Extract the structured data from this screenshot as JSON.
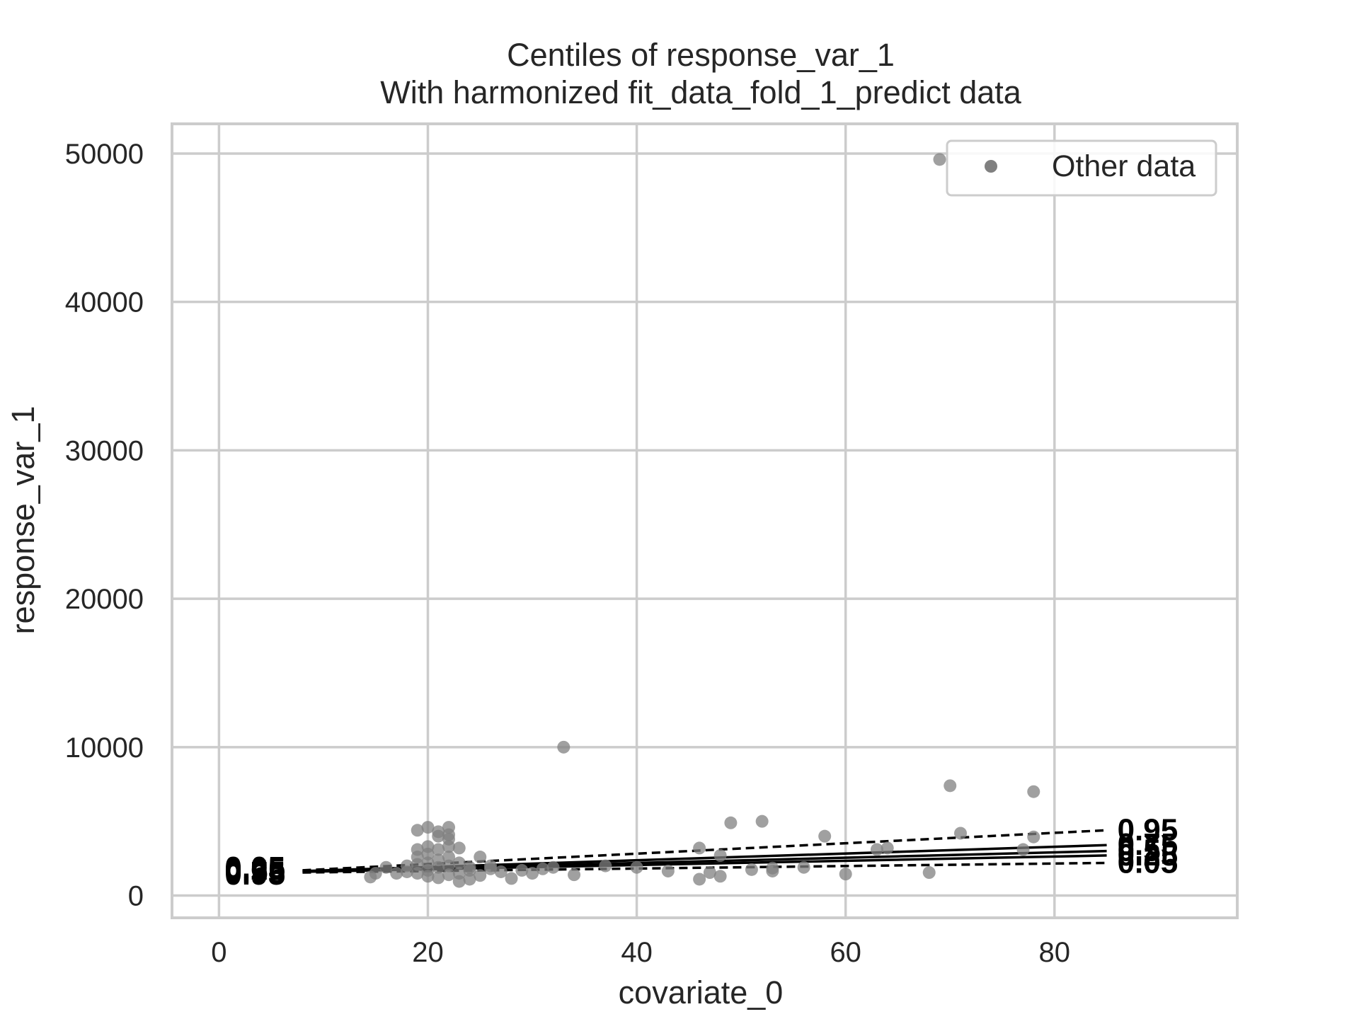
{
  "chart_data": {
    "type": "scatter",
    "title": "Centiles of response_var_1",
    "subtitle": "With harmonized fit_data_fold_1_predict data",
    "xlabel": "covariate_0",
    "ylabel": "response_var_1",
    "xlim": [
      -4.5,
      97.5
    ],
    "ylim": [
      -1500,
      52000
    ],
    "xticks": [
      0,
      20,
      40,
      60,
      80
    ],
    "yticks": [
      0,
      10000,
      20000,
      30000,
      40000,
      50000
    ],
    "xtick_labels": [
      "0",
      "20",
      "40",
      "60",
      "80"
    ],
    "ytick_labels": [
      "0",
      "10000",
      "20000",
      "30000",
      "40000",
      "50000"
    ],
    "grid": true,
    "legend": {
      "position": "top-right",
      "entries": [
        {
          "label": "Other data",
          "color": "#808080",
          "marker": "circle"
        }
      ]
    },
    "scatter_series": {
      "name": "Other data",
      "color": "#808080",
      "opacity": 0.75,
      "points": [
        [
          69,
          49600
        ],
        [
          33,
          10000
        ],
        [
          70,
          7400
        ],
        [
          78,
          7000
        ],
        [
          49,
          4900
        ],
        [
          52,
          5000
        ],
        [
          58,
          4000
        ],
        [
          71,
          4200
        ],
        [
          78,
          3950
        ],
        [
          46,
          3200
        ],
        [
          48,
          2700
        ],
        [
          63,
          3100
        ],
        [
          64,
          3200
        ],
        [
          77,
          3100
        ],
        [
          68,
          1550
        ],
        [
          60,
          1450
        ],
        [
          56,
          1900
        ],
        [
          53,
          1650
        ],
        [
          53,
          1850
        ],
        [
          51,
          1750
        ],
        [
          47,
          1550
        ],
        [
          48,
          1300
        ],
        [
          46,
          1100
        ],
        [
          43,
          1650
        ],
        [
          40,
          1900
        ],
        [
          37,
          2000
        ],
        [
          34,
          1400
        ],
        [
          32,
          1900
        ],
        [
          31,
          1800
        ],
        [
          29,
          1700
        ],
        [
          28,
          1150
        ],
        [
          27,
          1600
        ],
        [
          26,
          2000
        ],
        [
          25,
          2600
        ],
        [
          25,
          1350
        ],
        [
          24,
          1100
        ],
        [
          24,
          1900
        ],
        [
          23,
          3200
        ],
        [
          23,
          2200
        ],
        [
          23,
          1500
        ],
        [
          23,
          950
        ],
        [
          22,
          4600
        ],
        [
          22,
          4100
        ],
        [
          22,
          3800
        ],
        [
          22,
          3300
        ],
        [
          22,
          2600
        ],
        [
          22,
          2000
        ],
        [
          22,
          1400
        ],
        [
          21,
          4300
        ],
        [
          21,
          4000
        ],
        [
          21,
          3100
        ],
        [
          21,
          2400
        ],
        [
          21,
          1900
        ],
        [
          21,
          1200
        ],
        [
          20,
          4600
        ],
        [
          20,
          3300
        ],
        [
          20,
          2800
        ],
        [
          20,
          2200
        ],
        [
          20,
          1700
        ],
        [
          20,
          1300
        ],
        [
          19,
          4400
        ],
        [
          19,
          3100
        ],
        [
          19,
          2600
        ],
        [
          19,
          2100
        ],
        [
          19,
          1500
        ],
        [
          18,
          2000
        ],
        [
          18,
          1600
        ],
        [
          17,
          1500
        ],
        [
          16,
          1900
        ],
        [
          15,
          1500
        ],
        [
          14.5,
          1250
        ],
        [
          26,
          1800
        ],
        [
          24,
          1700
        ],
        [
          30,
          1500
        ]
      ]
    },
    "centiles": [
      {
        "name": "0.05",
        "style": "dashed",
        "x": [
          8,
          85
        ],
        "y": [
          1550,
          2200
        ]
      },
      {
        "name": "0.25",
        "style": "solid",
        "x": [
          8,
          85
        ],
        "y": [
          1600,
          2700
        ]
      },
      {
        "name": "0.5",
        "style": "solid",
        "x": [
          8,
          85
        ],
        "y": [
          1620,
          3000
        ]
      },
      {
        "name": "0.75",
        "style": "solid",
        "x": [
          8,
          85
        ],
        "y": [
          1650,
          3400
        ]
      },
      {
        "name": "0.95",
        "style": "dashed",
        "x": [
          8,
          85
        ],
        "y": [
          1700,
          4400
        ]
      }
    ],
    "centile_labels_left": [
      "0.05",
      "0.25",
      "0.5",
      "0.75",
      "0.95"
    ],
    "centile_labels_right": [
      "0.95",
      "0.75",
      "0.5",
      "0.25",
      "0.05"
    ]
  }
}
